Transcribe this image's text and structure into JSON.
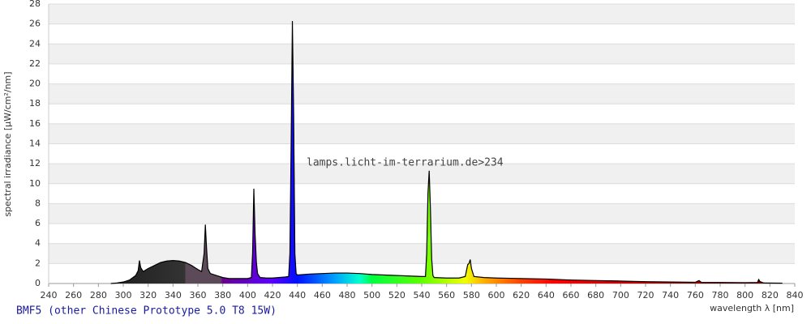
{
  "chart_data": {
    "type": "area",
    "title": "BMF5 (other Chinese Prototype 5.0 T8 15W)",
    "xlabel": "wavelength λ [nm]",
    "ylabel": "spectral irradiance [µW/cm²/nm]",
    "annotation": "lamps.licht-im-terrarium.de>234",
    "xlim": [
      240,
      840
    ],
    "ylim": [
      0,
      28
    ],
    "xticks": [
      240,
      260,
      280,
      300,
      320,
      340,
      360,
      380,
      400,
      420,
      440,
      460,
      480,
      500,
      520,
      540,
      560,
      580,
      600,
      620,
      640,
      660,
      680,
      700,
      720,
      740,
      760,
      780,
      800,
      820,
      840
    ],
    "yticks": [
      0,
      2,
      4,
      6,
      8,
      10,
      12,
      14,
      16,
      18,
      20,
      22,
      24,
      26,
      28
    ],
    "grid": "banded",
    "line_color": "#000000",
    "x": [
      290,
      295,
      300,
      305,
      310,
      312,
      313,
      314,
      316,
      320,
      325,
      330,
      335,
      340,
      345,
      350,
      355,
      360,
      363,
      365,
      366,
      367,
      368,
      370,
      375,
      380,
      385,
      390,
      395,
      400,
      403,
      404,
      405,
      406,
      407,
      408,
      410,
      415,
      420,
      425,
      430,
      433,
      434,
      435,
      436,
      437,
      438,
      439,
      440,
      450,
      460,
      470,
      480,
      490,
      500,
      510,
      520,
      530,
      540,
      543,
      544,
      545,
      546,
      547,
      548,
      549,
      550,
      560,
      570,
      575,
      577,
      578,
      579,
      580,
      582,
      590,
      600,
      620,
      640,
      660,
      680,
      700,
      720,
      740,
      760,
      763,
      765,
      780,
      800,
      810,
      811,
      812,
      815,
      830
    ],
    "values": [
      0,
      0.05,
      0.15,
      0.35,
      0.8,
      1.3,
      2.3,
      1.6,
      1.2,
      1.5,
      1.8,
      2.1,
      2.25,
      2.3,
      2.25,
      2.1,
      1.8,
      1.4,
      1.2,
      3.0,
      5.9,
      3.5,
      1.5,
      1.0,
      0.8,
      0.6,
      0.5,
      0.5,
      0.5,
      0.5,
      0.6,
      3.0,
      9.5,
      5.0,
      2.2,
      1.0,
      0.6,
      0.55,
      0.55,
      0.6,
      0.65,
      0.7,
      3.0,
      14.0,
      26.3,
      17.0,
      3.0,
      1.0,
      0.85,
      0.95,
      1.0,
      1.05,
      1.05,
      1.0,
      0.9,
      0.85,
      0.8,
      0.75,
      0.7,
      0.7,
      3.0,
      9.0,
      11.3,
      7.5,
      2.5,
      0.8,
      0.6,
      0.55,
      0.55,
      0.7,
      1.9,
      2.0,
      2.4,
      1.5,
      0.7,
      0.6,
      0.55,
      0.5,
      0.45,
      0.35,
      0.3,
      0.25,
      0.18,
      0.15,
      0.12,
      0.3,
      0.1,
      0.1,
      0.08,
      0.1,
      0.4,
      0.2,
      0.05,
      0.03
    ]
  }
}
